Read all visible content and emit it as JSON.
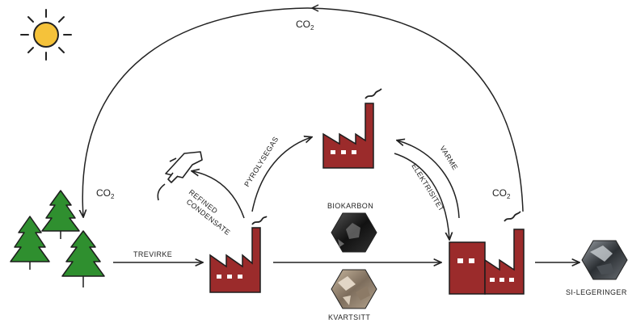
{
  "labels": {
    "co2_top": "CO",
    "co2_left": "CO",
    "co2_right": "CO",
    "co2_subscript": "2",
    "trevirke": "TREVIRKE",
    "refined": "REFINED",
    "condensate": "CONDENSATE",
    "pyrolysegas": "PYROLYSEGAS",
    "varme": "VARME",
    "elektrisitet": "ELEKTRISITET",
    "biokarbon": "BIOKARBON",
    "kvartsitt": "KVARTSITT",
    "si_legeringer": "SI-LEGERINGER"
  },
  "icons": [
    "sun-icon",
    "tree-icon",
    "factory-icon",
    "fuel-nozzle-icon",
    "biokarbon-hexagon-icon",
    "kvartsitt-hexagon-icon",
    "si-alloy-hexagon-icon"
  ],
  "colors": {
    "factory": "#9b2b2b",
    "tree": "#2f8f2f",
    "sun": "#f5c23a",
    "line": "#222222"
  }
}
